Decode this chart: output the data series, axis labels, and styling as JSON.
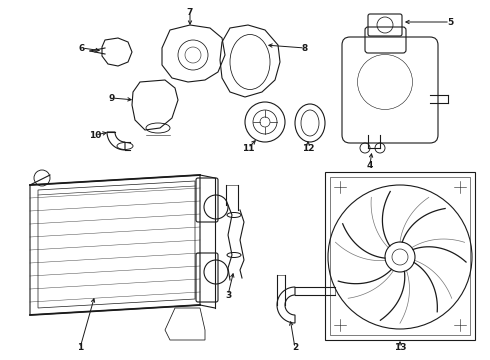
{
  "background_color": "#ffffff",
  "line_color": "#1a1a1a",
  "label_fontsize": 6.5,
  "fig_width": 4.9,
  "fig_height": 3.6,
  "dpi": 100
}
